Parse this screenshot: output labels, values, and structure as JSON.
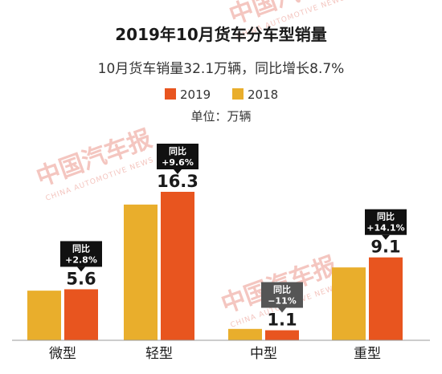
{
  "chart_data": {
    "type": "bar",
    "title": "2019年10月货车分车型销量",
    "subtitle": "10月货车销量32.1万辆，同比增长8.7%",
    "unit_label": "单位：万辆",
    "categories": [
      "微型",
      "轻型",
      "中型",
      "重型"
    ],
    "series": [
      {
        "name": "2019",
        "color": "#e8551f",
        "values": [
          5.6,
          16.3,
          1.1,
          9.1
        ]
      },
      {
        "name": "2018",
        "color": "#e9ae2c",
        "values": [
          5.45,
          14.9,
          1.25,
          8.0
        ]
      }
    ],
    "value_labels": [
      "5.6",
      "16.3",
      "1.1",
      "9.1"
    ],
    "badges": [
      {
        "line1": "同比",
        "line2": "+2.8%",
        "color": "#111111"
      },
      {
        "line1": "同比",
        "line2": "+9.6%",
        "color": "#111111"
      },
      {
        "line1": "同比",
        "line2": "−11%",
        "color": "#555555"
      },
      {
        "line1": "同比",
        "line2": "+14.1%",
        "color": "#111111"
      }
    ],
    "ylim": [
      0,
      18
    ],
    "legend_position": "top-center"
  },
  "watermark": {
    "text": "中国汽车报",
    "sub": "CHINA AUTOMOTIVE NEWS"
  }
}
